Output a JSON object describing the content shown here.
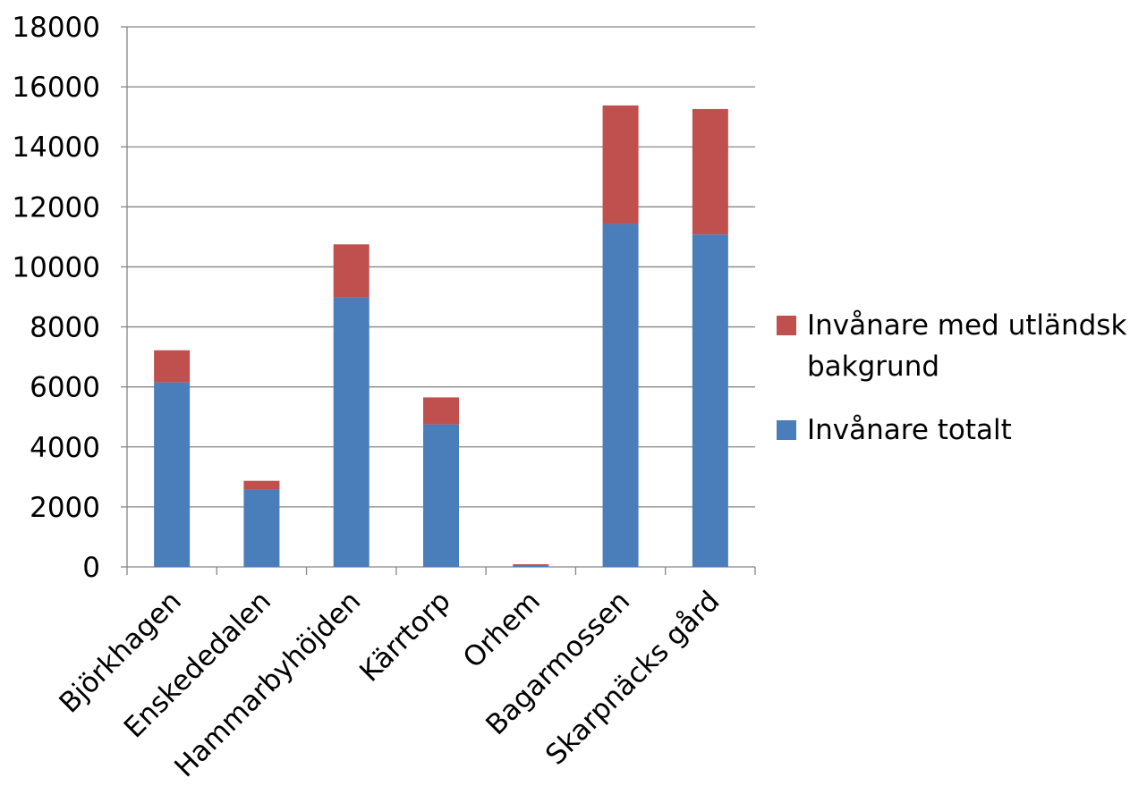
{
  "chart_data": {
    "type": "bar",
    "stacked": true,
    "categories": [
      "Björkhagen",
      "Enskededalen",
      "Hammarbyhöjden",
      "Kärrtorp",
      "Orhem",
      "Bagarmossen",
      "Skarpnäcks gård"
    ],
    "series": [
      {
        "name": "Invånare totalt",
        "color": "#4a7ebb",
        "values": [
          6150,
          2580,
          8980,
          4750,
          60,
          11430,
          11080
        ]
      },
      {
        "name": "Invånare med utländsk bakgrund",
        "color": "#c0504d",
        "values": [
          1070,
          290,
          1770,
          900,
          30,
          3950,
          4180
        ]
      }
    ],
    "ylim": [
      0,
      18000
    ],
    "yticks": [
      "0",
      "2000",
      "4000",
      "6000",
      "8000",
      "10000",
      "12000",
      "14000",
      "16000",
      "18000"
    ],
    "grid": true,
    "legend_position": "right",
    "legend": [
      {
        "label_lines": [
          "Invånare med utländsk",
          "bakgrund"
        ],
        "color": "#c0504d"
      },
      {
        "label_lines": [
          "Invånare totalt"
        ],
        "color": "#4a7ebb"
      }
    ]
  }
}
